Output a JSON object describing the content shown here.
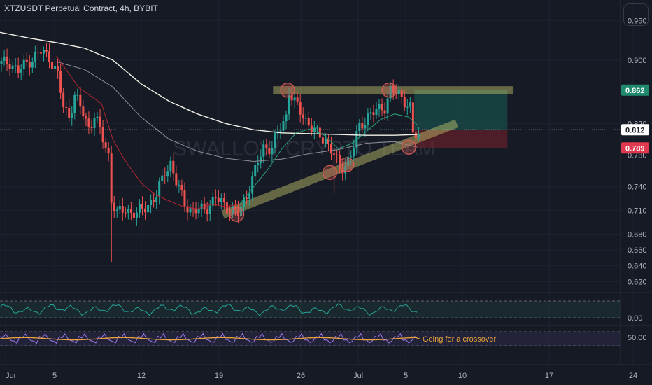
{
  "header": {
    "title": "XTZUSDT Perpetual Contract, 4h, BYBIT"
  },
  "watermark": "SWALLOW CRYPTO TEAM",
  "colors": {
    "background": "#161a25",
    "up": "#26a69a",
    "down": "#ef5350",
    "ma_long": "#f2efe6",
    "ma_mid": "#8f8f98",
    "ma_short_red": "#b52530",
    "ma_short_green": "#2ca178",
    "zone": "#c8c86c",
    "circle": "#d65b57",
    "target": "#1a5f55",
    "stop": "#6b1f2a",
    "rsi": "#26a69a",
    "stoch": "#9f7af0",
    "stoch_signal": "#e8a33c"
  },
  "chart_data": {
    "type": "candlestick",
    "title": "XTZUSDT Perpetual Contract, 4h, BYBIT",
    "price_axis": {
      "range": [
        0.615,
        0.96
      ],
      "ticks": [
        "0.950",
        "0.900",
        "0.820",
        "0.780",
        "0.740",
        "0.710",
        "0.680",
        "0.660",
        "0.640",
        "0.620"
      ],
      "badges": [
        {
          "label": "0.862",
          "kind": "target"
        },
        {
          "label": "0.812",
          "kind": "current"
        },
        {
          "label": "0.789",
          "kind": "stop"
        }
      ]
    },
    "time_axis": {
      "labels": [
        "Jun",
        "5",
        "12",
        "19",
        "26",
        "Jul",
        "5",
        "10",
        "17",
        "24"
      ]
    },
    "close_path": [
      [
        0,
        0.895
      ],
      [
        3,
        0.898
      ],
      [
        6,
        0.885
      ],
      [
        10,
        0.9
      ],
      [
        14,
        0.91
      ],
      [
        17,
        0.905
      ],
      [
        20,
        0.88
      ],
      [
        22,
        0.84
      ],
      [
        24,
        0.83
      ],
      [
        26,
        0.855
      ],
      [
        28,
        0.84
      ],
      [
        31,
        0.815
      ],
      [
        33,
        0.83
      ],
      [
        36,
        0.8
      ],
      [
        38,
        0.78
      ],
      [
        39,
        0.725
      ],
      [
        41,
        0.705
      ],
      [
        44,
        0.712
      ],
      [
        48,
        0.705
      ],
      [
        52,
        0.718
      ],
      [
        55,
        0.728
      ],
      [
        58,
        0.76
      ],
      [
        60,
        0.77
      ],
      [
        62,
        0.745
      ],
      [
        65,
        0.72
      ],
      [
        68,
        0.708
      ],
      [
        72,
        0.712
      ],
      [
        76,
        0.725
      ],
      [
        80,
        0.715
      ],
      [
        84,
        0.705
      ],
      [
        87,
        0.73
      ],
      [
        90,
        0.76
      ],
      [
        93,
        0.79
      ],
      [
        96,
        0.79
      ],
      [
        99,
        0.815
      ],
      [
        101,
        0.83
      ],
      [
        102,
        0.862
      ],
      [
        104,
        0.845
      ],
      [
        106,
        0.835
      ],
      [
        109,
        0.82
      ],
      [
        112,
        0.805
      ],
      [
        115,
        0.8
      ],
      [
        118,
        0.78
      ],
      [
        120,
        0.76
      ],
      [
        122,
        0.77
      ],
      [
        124,
        0.78
      ],
      [
        127,
        0.815
      ],
      [
        130,
        0.83
      ],
      [
        133,
        0.835
      ],
      [
        136,
        0.842
      ],
      [
        138,
        0.862
      ],
      [
        140,
        0.858
      ],
      [
        143,
        0.85
      ],
      [
        145,
        0.84
      ],
      [
        146,
        0.805
      ],
      [
        148,
        0.803
      ]
    ],
    "spikes": [
      {
        "bar": 39,
        "high": 0.78,
        "low": 0.645
      },
      {
        "bar": 118,
        "high": 0.79,
        "low": 0.732
      }
    ],
    "moving_averages": [
      {
        "color": "ma_long",
        "points": [
          [
            0,
            0.935
          ],
          [
            10,
            0.928
          ],
          [
            20,
            0.922
          ],
          [
            30,
            0.915
          ],
          [
            40,
            0.9
          ],
          [
            50,
            0.87
          ],
          [
            60,
            0.848
          ],
          [
            70,
            0.832
          ],
          [
            80,
            0.82
          ],
          [
            90,
            0.812
          ],
          [
            100,
            0.808
          ],
          [
            110,
            0.807
          ],
          [
            120,
            0.806
          ],
          [
            130,
            0.805
          ],
          [
            140,
            0.805
          ],
          [
            148,
            0.806
          ]
        ]
      },
      {
        "color": "ma_mid",
        "points": [
          [
            20,
            0.898
          ],
          [
            30,
            0.888
          ],
          [
            40,
            0.866
          ],
          [
            50,
            0.828
          ],
          [
            60,
            0.8
          ],
          [
            70,
            0.785
          ],
          [
            80,
            0.776
          ],
          [
            90,
            0.772
          ],
          [
            100,
            0.775
          ],
          [
            110,
            0.782
          ],
          [
            120,
            0.787
          ],
          [
            130,
            0.795
          ],
          [
            140,
            0.797
          ],
          [
            148,
            0.79
          ]
        ]
      },
      {
        "color": "ma_short_red",
        "points": [
          [
            20,
            0.905
          ],
          [
            28,
            0.865
          ],
          [
            36,
            0.845
          ],
          [
            40,
            0.8
          ],
          [
            44,
            0.775
          ],
          [
            50,
            0.745
          ],
          [
            55,
            0.73
          ],
          [
            60,
            0.722
          ],
          [
            65,
            0.715
          ],
          [
            70,
            0.712
          ],
          [
            75,
            0.718
          ],
          [
            80,
            0.715
          ],
          [
            85,
            0.718
          ]
        ]
      },
      {
        "color": "ma_short_green",
        "points": [
          [
            85,
            0.718
          ],
          [
            90,
            0.74
          ],
          [
            95,
            0.762
          ],
          [
            100,
            0.788
          ],
          [
            105,
            0.808
          ],
          [
            110,
            0.813
          ],
          [
            115,
            0.805
          ],
          [
            120,
            0.788
          ],
          [
            125,
            0.795
          ],
          [
            130,
            0.81
          ],
          [
            135,
            0.825
          ],
          [
            140,
            0.832
          ],
          [
            145,
            0.828
          ],
          [
            148,
            0.818
          ]
        ]
      }
    ],
    "annotations": {
      "resistance_zone": {
        "from_bar": 97,
        "to_bar": 182,
        "price": 0.862
      },
      "support_trendline": {
        "from": [
          79,
          0.705
        ],
        "to": [
          162,
          0.82
        ]
      },
      "circles": [
        [
          102,
          0.862
        ],
        [
          138,
          0.862
        ],
        [
          84,
          0.705
        ],
        [
          117,
          0.758
        ],
        [
          123,
          0.768
        ],
        [
          145,
          0.79
        ]
      ],
      "position": {
        "from_bar": 147,
        "to_bar": 180,
        "target": 0.862,
        "entry": 0.812,
        "stop": 0.789
      }
    },
    "rsi_panel": {
      "label": "0.00",
      "level_range": [
        0.32,
        0.68
      ]
    },
    "stoch_panel": {
      "label": "50.00",
      "annotation": "Going for a crossover"
    }
  }
}
